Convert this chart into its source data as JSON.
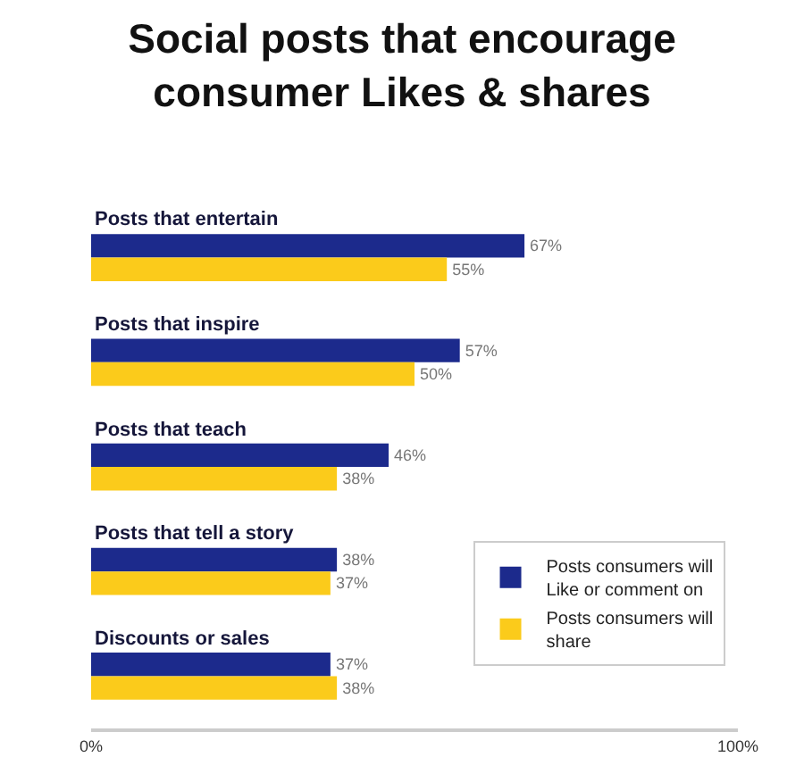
{
  "chart_data": {
    "type": "bar",
    "orientation": "horizontal",
    "title": "Social posts that encourage consumer Likes & shares",
    "categories": [
      "Posts that entertain",
      "Posts that inspire",
      "Posts that teach",
      "Posts that tell a story",
      "Discounts or sales"
    ],
    "series": [
      {
        "name": "Posts consumers will Like or comment on",
        "color": "#1c2a8c",
        "values": [
          67,
          57,
          46,
          38,
          37
        ],
        "value_labels": [
          "67%",
          "57%",
          "46%",
          "38%",
          "37%"
        ]
      },
      {
        "name": "Posts consumers will share",
        "color": "#fbcb1b",
        "values": [
          55,
          50,
          38,
          37,
          38
        ],
        "value_labels": [
          "55%",
          "50%",
          "38%",
          "37%",
          "38%"
        ]
      }
    ],
    "xlim": [
      0,
      100
    ],
    "xticks": [
      {
        "value": 0,
        "label": "0%"
      },
      {
        "value": 100,
        "label": "100%"
      }
    ],
    "legend": "bottom right"
  }
}
